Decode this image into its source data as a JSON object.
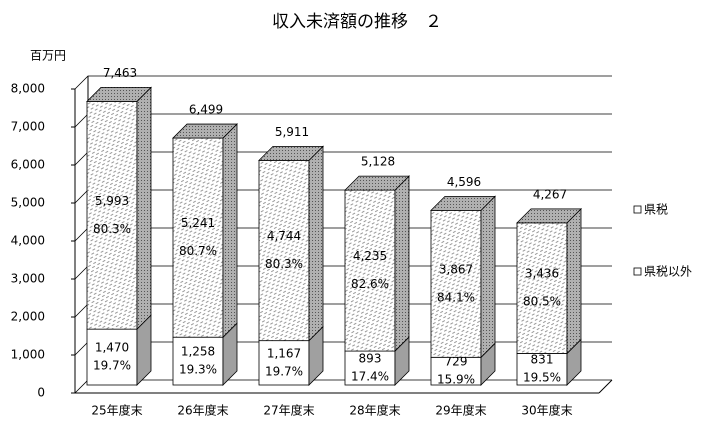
{
  "chart_data": {
    "type": "bar3d-stacked",
    "title": "収入未済額の推移　２",
    "y_axis_label": "百万円",
    "categories": [
      "25年度末",
      "26年度末",
      "27年度末",
      "28年度末",
      "29年度末",
      "30年度末"
    ],
    "series": [
      {
        "name": "県税以外",
        "color": "#ffffff",
        "values": [
          1470,
          1258,
          1167,
          893,
          729,
          831
        ],
        "value_labels": [
          "1,470",
          "1,258",
          "1,167",
          "893",
          "729",
          "831"
        ],
        "shares": [
          19.7,
          19.3,
          19.7,
          17.4,
          15.9,
          19.5
        ],
        "share_labels": [
          "19.7%",
          "19.3%",
          "19.7%",
          "17.4%",
          "15.9%",
          "19.5%"
        ]
      },
      {
        "name": "県税",
        "color": "#e6e6e6",
        "values": [
          5993,
          5241,
          4744,
          4235,
          3867,
          3436
        ],
        "value_labels": [
          "5,993",
          "5,241",
          "4,744",
          "4,235",
          "3,867",
          "3,436"
        ],
        "shares": [
          80.3,
          80.7,
          80.3,
          82.6,
          84.1,
          80.5
        ],
        "share_labels": [
          "80.3%",
          "80.7%",
          "80.3%",
          "82.6%",
          "84.1%",
          "80.5%"
        ]
      }
    ],
    "totals": [
      7463,
      6499,
      5911,
      5128,
      4596,
      4267
    ],
    "total_labels": [
      "7,463",
      "6,499",
      "5,911",
      "5,128",
      "4,596",
      "4,267"
    ],
    "ylim": [
      0,
      8000
    ],
    "yticks": [
      0,
      {
        "value": 1000,
        "label": "1,000"
      },
      {
        "value": 2000,
        "label": "2,000"
      },
      {
        "value": 3000,
        "label": "3,000"
      },
      {
        "value": 4000,
        "label": "4,000"
      },
      {
        "value": 5000,
        "label": "5,000"
      },
      {
        "value": 6000,
        "label": "6,000"
      },
      {
        "value": 7000,
        "label": "7,000"
      },
      {
        "value": 8000,
        "label": "8,000"
      }
    ],
    "grid": true,
    "legend": "right"
  }
}
